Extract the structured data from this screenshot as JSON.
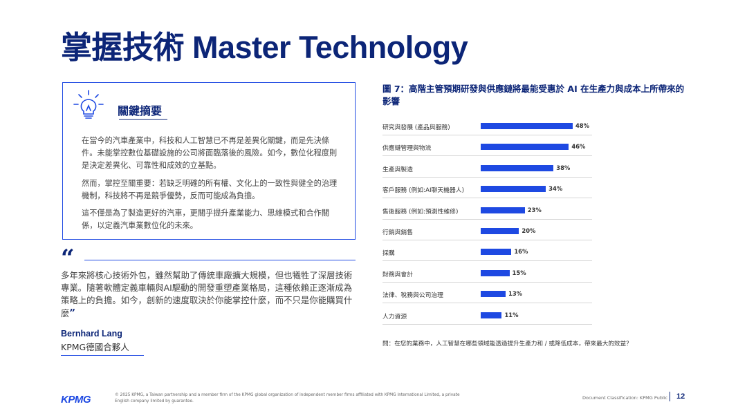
{
  "page": {
    "title": "掌握技術 Master Technology"
  },
  "summary": {
    "heading": "關鍵摘要",
    "paragraphs": [
      "在當今的汽車產業中，科技和人工智慧已不再是差異化關鍵，而是先決條件。未能掌控數位基礎設施的公司將面臨落後的風險。如今，數位化程度則是決定差異化、可靠性和成效的立基點。",
      "然而，掌控至關重要：若缺乏明確的所有權、文化上的一致性與健全的治理機制，科技將不再是競爭優勢，反而可能成為負擔。",
      "這不僅是為了製造更好的汽車，更關乎提升產業能力、思維模式和合作關係，以定義汽車業數位化的未來。"
    ],
    "icon": "lightbulb-icon"
  },
  "quote": {
    "open_mark": "“",
    "text": "多年來將核心技術外包，雖然幫助了傳統車廠擴大規模，但也犧牲了深層技術專業。隨著軟體定義車輛與AI驅動的開發重塑產業格局，這種依賴正逐漸成為策略上的負擔。如今，創新的速度取決於你能掌控什麼，而不只是你能購買什麼",
    "close_mark": "”",
    "author": "Bernhard Lang",
    "organization": "KPMG德國合夥人"
  },
  "chart_data": {
    "type": "bar",
    "orientation": "horizontal",
    "title": "圖 7：高階主管預期研發與供應鏈將最能受惠於 AI 在生產力與成本上所帶來的影響",
    "categories": [
      "研究與發展 (產品與服務)",
      "供應鏈管理與物流",
      "生產與製造",
      "客戶服務 (例如:AI聊天機器人)",
      "售後服務 (例如:預測性維修)",
      "行銷與銷售",
      "採購",
      "財務與會計",
      "法律、稅務與公司治理",
      "人力資源"
    ],
    "values": [
      48,
      46,
      38,
      34,
      23,
      20,
      16,
      15,
      13,
      11
    ],
    "value_labels": [
      "48%",
      "46%",
      "38%",
      "34%",
      "23%",
      "20%",
      "16%",
      "15%",
      "13%",
      "11%"
    ],
    "unit": "%",
    "bar_color": "#1e49e2",
    "note": "問：在您的業務中，人工智慧在哪些領域能透過提升生產力和 / 或降低成本，帶來最大的效益？"
  },
  "footer": {
    "logo": "KPMG",
    "legal": "© 2025 KPMG, a Taiwan partnership and a member firm of the KPMG global organization of independent member firms affiliated with KPMG International Limited, a private English company limited by guarantee.",
    "classification": "Document Classification: KPMG Public",
    "page_number": "12"
  },
  "colors": {
    "navy": "#0c2577",
    "accent_blue": "#1e49e2"
  }
}
